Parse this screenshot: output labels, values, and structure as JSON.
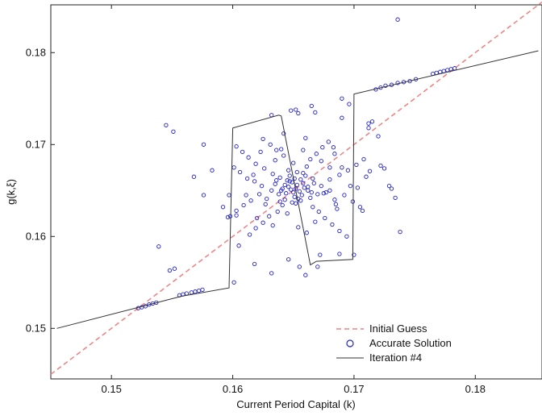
{
  "chart_data": {
    "type": "scatter",
    "xlabel": "Current Period Capital (k)",
    "ylabel": "g(k,ξ)",
    "xlim": [
      0.145,
      0.1855
    ],
    "ylim": [
      0.1445,
      0.1852
    ],
    "x_ticks": [
      0.15,
      0.16,
      0.17,
      0.18
    ],
    "y_ticks": [
      0.15,
      0.16,
      0.17,
      0.18
    ],
    "x_tick_labels": [
      "0.15",
      "0.16",
      "0.17",
      "0.18"
    ],
    "y_tick_labels": [
      "0.15",
      "0.16",
      "0.17",
      "0.18"
    ],
    "grid": false,
    "legend_position": "bottom-right",
    "colors": {
      "initial_guess": "#f08080",
      "accurate_solution": "#2222cc",
      "iteration": "#333333"
    },
    "series": [
      {
        "name": "Initial Guess",
        "style": "dashed-line",
        "x": [
          0.145,
          0.1855
        ],
        "y": [
          0.145,
          0.1855
        ]
      },
      {
        "name": "Accurate Solution",
        "style": "circle-markers",
        "points": [
          [
            0.1522,
            0.1522
          ],
          [
            0.1525,
            0.1523
          ],
          [
            0.1528,
            0.1524
          ],
          [
            0.1531,
            0.1526
          ],
          [
            0.1534,
            0.1527
          ],
          [
            0.1537,
            0.1528
          ],
          [
            0.1556,
            0.1536
          ],
          [
            0.1559,
            0.1537
          ],
          [
            0.1562,
            0.1538
          ],
          [
            0.1566,
            0.1539
          ],
          [
            0.1569,
            0.154
          ],
          [
            0.1572,
            0.1541
          ],
          [
            0.1575,
            0.1542
          ],
          [
            0.1718,
            0.176
          ],
          [
            0.1722,
            0.1762
          ],
          [
            0.1726,
            0.1764
          ],
          [
            0.1731,
            0.1765
          ],
          [
            0.1736,
            0.1767
          ],
          [
            0.1741,
            0.1768
          ],
          [
            0.1746,
            0.1769
          ],
          [
            0.1751,
            0.1771
          ],
          [
            0.1765,
            0.1777
          ],
          [
            0.1768,
            0.1778
          ],
          [
            0.1771,
            0.1779
          ],
          [
            0.1774,
            0.178
          ],
          [
            0.1777,
            0.1781
          ],
          [
            0.178,
            0.1782
          ],
          [
            0.1783,
            0.1783
          ],
          [
            0.1539,
            0.1589
          ],
          [
            0.1545,
            0.1721
          ],
          [
            0.1551,
            0.1714
          ],
          [
            0.1576,
            0.17
          ],
          [
            0.1583,
            0.1672
          ],
          [
            0.1552,
            0.1565
          ],
          [
            0.1548,
            0.1563
          ],
          [
            0.1568,
            0.1665
          ],
          [
            0.1576,
            0.1645
          ],
          [
            0.1597,
            0.1645
          ],
          [
            0.1603,
            0.1623
          ],
          [
            0.1618,
            0.157
          ],
          [
            0.1632,
            0.156
          ],
          [
            0.1655,
            0.1567
          ],
          [
            0.167,
            0.1567
          ],
          [
            0.1672,
            0.158
          ],
          [
            0.1675,
            0.1647
          ],
          [
            0.168,
            0.1675
          ],
          [
            0.1683,
            0.1697
          ],
          [
            0.169,
            0.175
          ],
          [
            0.1696,
            0.1744
          ],
          [
            0.1712,
            0.1718
          ],
          [
            0.1712,
            0.1723
          ],
          [
            0.1715,
            0.1725
          ],
          [
            0.172,
            0.1709
          ],
          [
            0.1722,
            0.1677
          ],
          [
            0.1725,
            0.1674
          ],
          [
            0.1734,
            0.1642
          ],
          [
            0.1736,
            0.1836
          ],
          [
            0.1738,
            0.1605
          ],
          [
            0.1648,
            0.1737
          ],
          [
            0.1652,
            0.1738
          ],
          [
            0.1665,
            0.1742
          ],
          [
            0.1668,
            0.1735
          ],
          [
            0.169,
            0.1729
          ],
          [
            0.1729,
            0.1655
          ],
          [
            0.1731,
            0.1652
          ],
          [
            0.17,
            0.158
          ],
          [
            0.1688,
            0.1581
          ],
          [
            0.1632,
            0.1732
          ],
          [
            0.1642,
            0.1712
          ],
          [
            0.166,
            0.1707
          ],
          [
            0.1654,
            0.1734
          ],
          [
            0.1646,
            0.1575
          ],
          [
            0.166,
            0.1558
          ],
          [
            0.1601,
            0.155
          ],
          [
            0.1605,
            0.159
          ],
          [
            0.1596,
            0.1621
          ],
          [
            0.1592,
            0.1632
          ],
          [
            0.1713,
            0.1671
          ],
          [
            0.1707,
            0.1628
          ],
          [
            0.168,
            0.165
          ],
          [
            0.1685,
            0.1635
          ],
          [
            0.1703,
            0.1653
          ],
          [
            0.171,
            0.1665
          ],
          [
            0.1652,
            0.1652
          ],
          [
            0.165,
            0.1648
          ],
          [
            0.1648,
            0.1651
          ],
          [
            0.1655,
            0.1649
          ],
          [
            0.1646,
            0.1654
          ],
          [
            0.1653,
            0.1656
          ],
          [
            0.1644,
            0.1647
          ],
          [
            0.1657,
            0.1645
          ],
          [
            0.1649,
            0.1659
          ],
          [
            0.1641,
            0.1652
          ],
          [
            0.1659,
            0.1653
          ],
          [
            0.1651,
            0.1643
          ],
          [
            0.1645,
            0.1661
          ],
          [
            0.1662,
            0.165
          ],
          [
            0.1638,
            0.1646
          ],
          [
            0.1656,
            0.1662
          ],
          [
            0.1643,
            0.164
          ],
          [
            0.1664,
            0.1642
          ],
          [
            0.1647,
            0.1666
          ],
          [
            0.1635,
            0.1657
          ],
          [
            0.1667,
            0.1658
          ],
          [
            0.1652,
            0.1636
          ],
          [
            0.1639,
            0.1664
          ],
          [
            0.167,
            0.1646
          ],
          [
            0.1632,
            0.165
          ],
          [
            0.1658,
            0.1669
          ],
          [
            0.1641,
            0.1634
          ],
          [
            0.1673,
            0.1655
          ],
          [
            0.1628,
            0.1641
          ],
          [
            0.1646,
            0.1672
          ],
          [
            0.1666,
            0.1632
          ],
          [
            0.1633,
            0.1668
          ],
          [
            0.1677,
            0.1648
          ],
          [
            0.1624,
            0.1655
          ],
          [
            0.1661,
            0.1676
          ],
          [
            0.1637,
            0.1627
          ],
          [
            0.168,
            0.1662
          ],
          [
            0.1622,
            0.1646
          ],
          [
            0.165,
            0.168
          ],
          [
            0.1671,
            0.1627
          ],
          [
            0.1626,
            0.1674
          ],
          [
            0.1684,
            0.164
          ],
          [
            0.1618,
            0.166
          ],
          [
            0.1664,
            0.1684
          ],
          [
            0.163,
            0.1622
          ],
          [
            0.1688,
            0.1667
          ],
          [
            0.1615,
            0.1639
          ],
          [
            0.1642,
            0.1688
          ],
          [
            0.1676,
            0.162
          ],
          [
            0.1619,
            0.1679
          ],
          [
            0.1692,
            0.1645
          ],
          [
            0.1612,
            0.1663
          ],
          [
            0.1669,
            0.169
          ],
          [
            0.1625,
            0.1615
          ],
          [
            0.1695,
            0.1672
          ],
          [
            0.1609,
            0.1634
          ],
          [
            0.1636,
            0.1694
          ],
          [
            0.1682,
            0.1613
          ],
          [
            0.1613,
            0.1686
          ],
          [
            0.1699,
            0.1638
          ],
          [
            0.1606,
            0.167
          ],
          [
            0.1674,
            0.1697
          ],
          [
            0.1619,
            0.1609
          ],
          [
            0.1702,
            0.1678
          ],
          [
            0.1603,
            0.1628
          ],
          [
            0.1631,
            0.17
          ],
          [
            0.1688,
            0.1606
          ],
          [
            0.1608,
            0.1692
          ],
          [
            0.1705,
            0.1632
          ],
          [
            0.1601,
            0.1675
          ],
          [
            0.1679,
            0.1703
          ],
          [
            0.1614,
            0.1602
          ],
          [
            0.1708,
            0.1684
          ],
          [
            0.1598,
            0.1622
          ],
          [
            0.1625,
            0.1706
          ],
          [
            0.1694,
            0.16
          ],
          [
            0.1603,
            0.1698
          ],
          [
            0.1654,
            0.161
          ],
          [
            0.164,
            0.1695
          ],
          [
            0.1661,
            0.1604
          ],
          [
            0.162,
            0.162
          ],
          [
            0.1684,
            0.169
          ],
          [
            0.1611,
            0.1645
          ],
          [
            0.1697,
            0.1655
          ],
          [
            0.1635,
            0.1683
          ],
          [
            0.1668,
            0.1616
          ],
          [
            0.1627,
            0.1635
          ],
          [
            0.169,
            0.1675
          ],
          [
            0.1617,
            0.1667
          ],
          [
            0.1673,
            0.1682
          ],
          [
            0.1645,
            0.1625
          ],
          [
            0.1658,
            0.1694
          ],
          [
            0.1633,
            0.1612
          ],
          [
            0.1686,
            0.163
          ],
          [
            0.1623,
            0.1692
          ],
          [
            0.1666,
            0.1663
          ],
          [
            0.1639,
            0.1638
          ],
          [
            0.1654,
            0.1641
          ],
          [
            0.1647,
            0.166
          ],
          [
            0.166,
            0.1666
          ],
          [
            0.1643,
            0.1656
          ],
          [
            0.1656,
            0.1639
          ],
          [
            0.1651,
            0.1663
          ],
          [
            0.1662,
            0.1654
          ],
          [
            0.164,
            0.165
          ],
          [
            0.1653,
            0.167
          ],
          [
            0.1649,
            0.1637
          ],
          [
            0.1665,
            0.1648
          ],
          [
            0.1636,
            0.1661
          ],
          [
            0.1658,
            0.1658
          ]
        ]
      },
      {
        "name": "Iteration #4",
        "style": "solid-line",
        "x": [
          0.1455,
          0.1558,
          0.1597,
          0.16,
          0.1638,
          0.164,
          0.1664,
          0.1669,
          0.1699,
          0.17,
          0.1852
        ],
        "y": [
          0.15,
          0.1535,
          0.1544,
          0.1718,
          0.1732,
          0.1731,
          0.1569,
          0.1573,
          0.1575,
          0.1755,
          0.1802
        ]
      }
    ]
  }
}
